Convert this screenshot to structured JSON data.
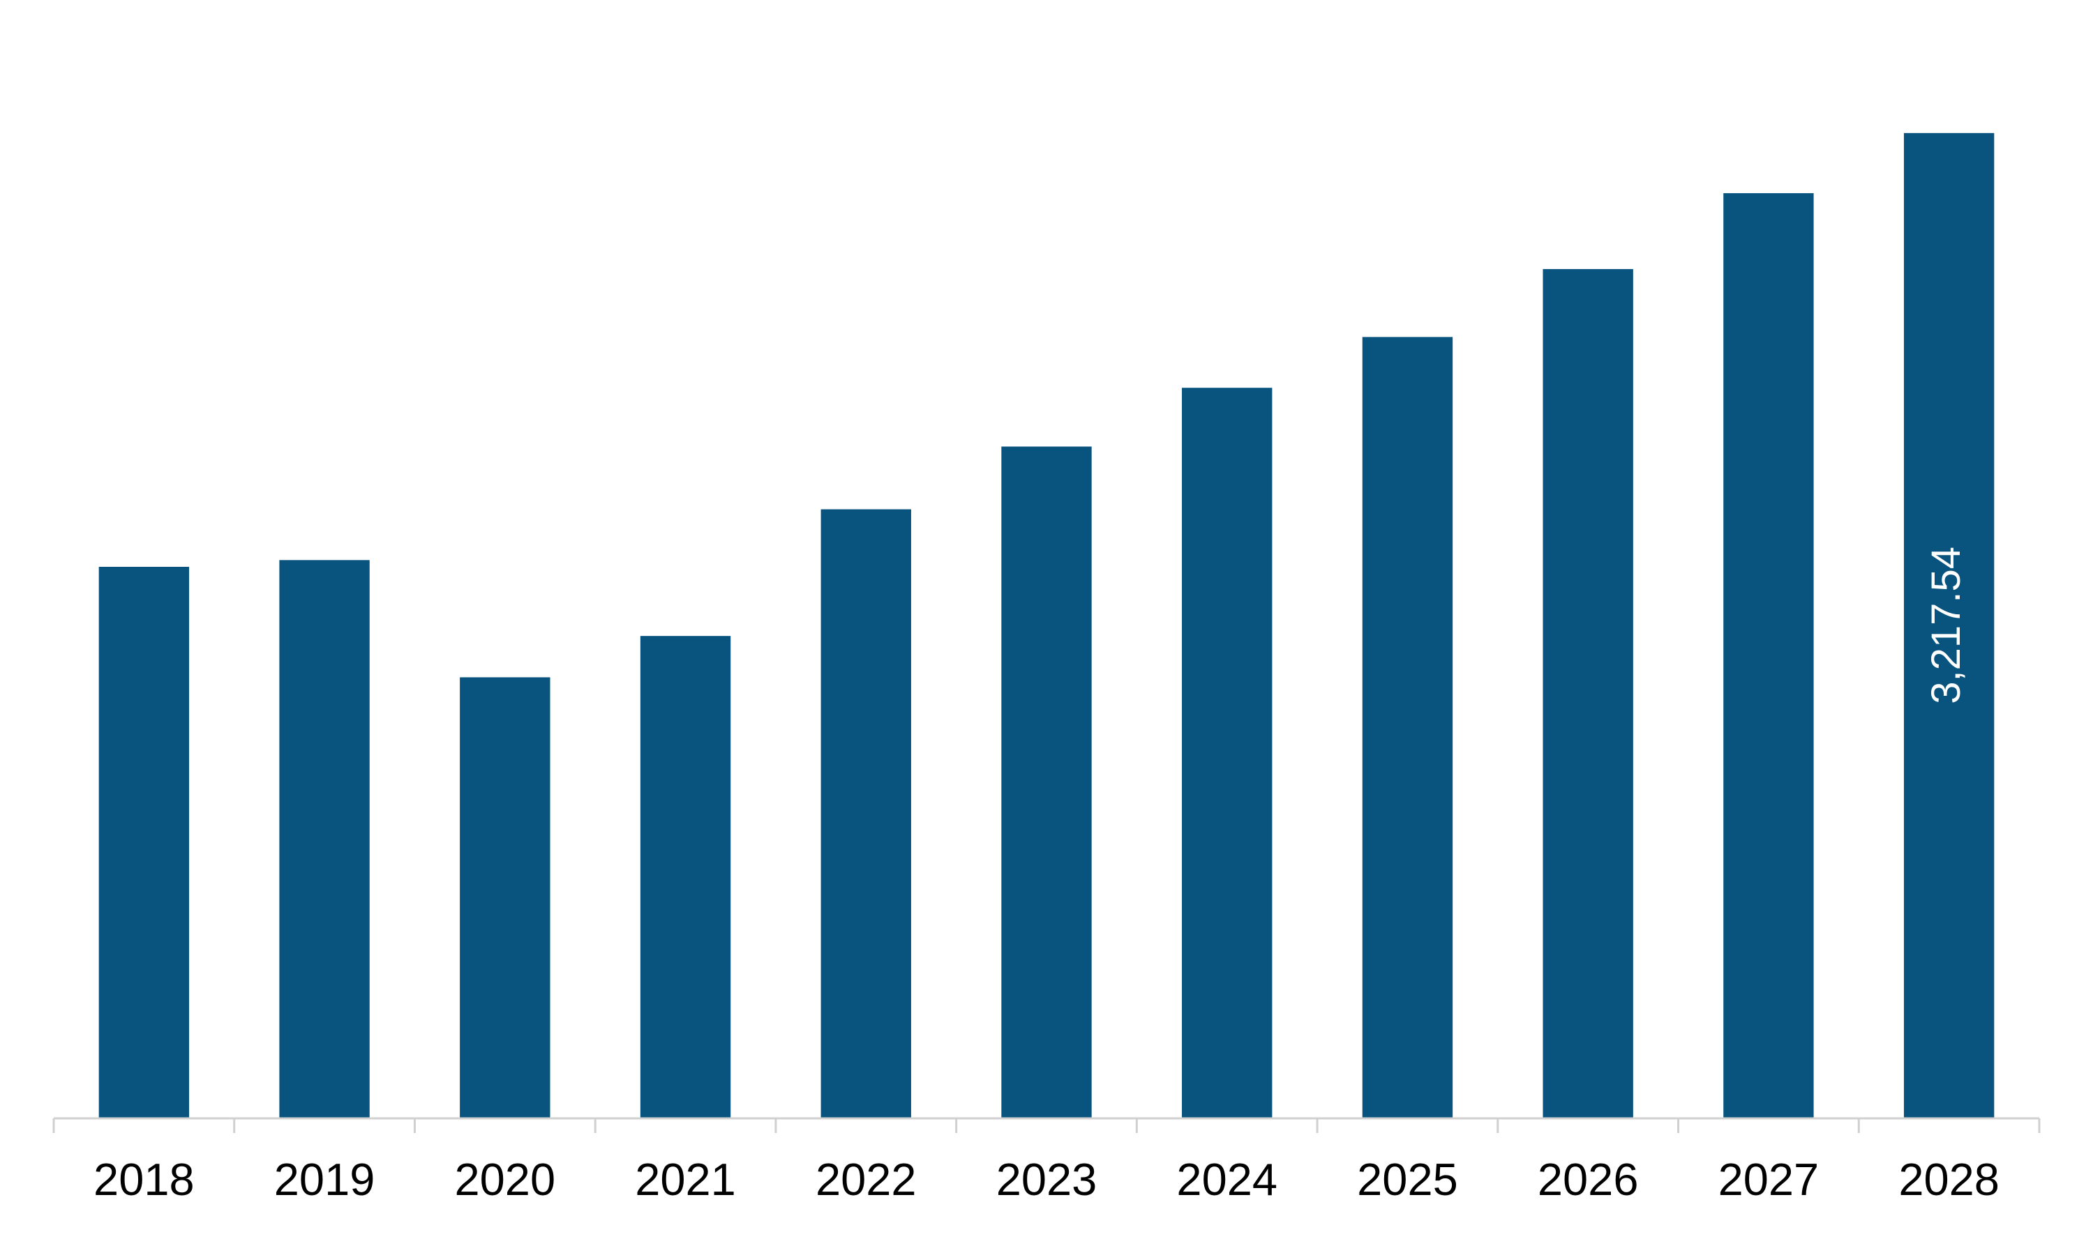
{
  "chart_data": {
    "type": "bar",
    "categories": [
      "2018",
      "2019",
      "2020",
      "2021",
      "2022",
      "2023",
      "2024",
      "2025",
      "2026",
      "2027",
      "2028"
    ],
    "values": [
      1800,
      1822,
      1439,
      1574,
      1988,
      2193,
      2385,
      2551,
      2773,
      3021,
      3217.54
    ],
    "value_labels": [
      null,
      null,
      null,
      null,
      null,
      null,
      null,
      null,
      null,
      null,
      "3,217.54"
    ],
    "color": "#08547f",
    "ylim": [
      0,
      3650
    ]
  }
}
